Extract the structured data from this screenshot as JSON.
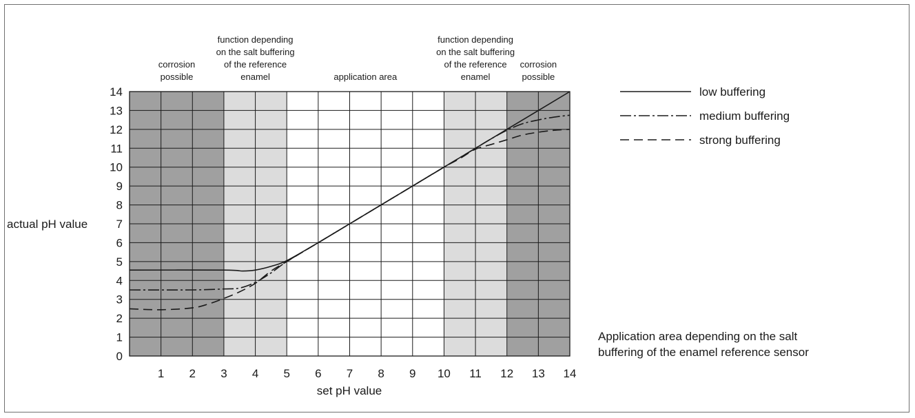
{
  "chart_data": {
    "type": "line",
    "xlabel": "set pH value",
    "ylabel": "actual pH value",
    "xlim": [
      0,
      14
    ],
    "ylim": [
      0,
      14
    ],
    "x_ticks": [
      1,
      2,
      3,
      4,
      5,
      6,
      7,
      8,
      9,
      10,
      11,
      12,
      13,
      14
    ],
    "y_ticks": [
      0,
      1,
      2,
      3,
      4,
      5,
      6,
      7,
      8,
      9,
      10,
      11,
      12,
      13,
      14
    ],
    "grid": true,
    "legend_position": "right",
    "zones": [
      {
        "from": 0,
        "to": 3,
        "shade": "dark",
        "label": [
          "corrosion",
          "possible"
        ]
      },
      {
        "from": 3,
        "to": 5,
        "shade": "light",
        "label": [
          "function depending",
          "on the salt buffering",
          "of the reference",
          "enamel"
        ]
      },
      {
        "from": 5,
        "to": 10,
        "shade": "none",
        "label": [
          "application area"
        ]
      },
      {
        "from": 10,
        "to": 12,
        "shade": "light",
        "label": [
          "function depending",
          "on the salt buffering",
          "of the reference",
          "enamel"
        ]
      },
      {
        "from": 12,
        "to": 14,
        "shade": "dark",
        "label": [
          "corrosion",
          "possible"
        ]
      }
    ],
    "series": [
      {
        "name": "low buffering",
        "style": "solid",
        "points": [
          [
            0,
            4.55
          ],
          [
            3,
            4.55
          ],
          [
            3.6,
            4.5
          ],
          [
            4,
            4.55
          ],
          [
            4.5,
            4.75
          ],
          [
            5,
            5.05
          ],
          [
            6,
            6
          ],
          [
            7,
            7
          ],
          [
            8,
            8
          ],
          [
            9,
            9
          ],
          [
            10,
            10
          ],
          [
            11,
            11
          ],
          [
            12,
            12
          ],
          [
            13,
            13
          ],
          [
            14,
            14
          ]
        ]
      },
      {
        "name": "medium buffering",
        "style": "dashdot",
        "points": [
          [
            0,
            3.5
          ],
          [
            2,
            3.5
          ],
          [
            3,
            3.55
          ],
          [
            3.5,
            3.6
          ],
          [
            4,
            3.9
          ],
          [
            4.5,
            4.4
          ],
          [
            5,
            5.0
          ],
          [
            6,
            6
          ],
          [
            7,
            7
          ],
          [
            8,
            8
          ],
          [
            9,
            9
          ],
          [
            10,
            10
          ],
          [
            10.5,
            10.5
          ],
          [
            11,
            11
          ],
          [
            11.5,
            11.5
          ],
          [
            12,
            11.95
          ],
          [
            12.5,
            12.3
          ],
          [
            13,
            12.5
          ],
          [
            13.5,
            12.65
          ],
          [
            14,
            12.75
          ]
        ]
      },
      {
        "name": "strong buffering",
        "style": "dashed",
        "points": [
          [
            0,
            2.5
          ],
          [
            1,
            2.45
          ],
          [
            2,
            2.55
          ],
          [
            2.5,
            2.75
          ],
          [
            3,
            3.05
          ],
          [
            3.5,
            3.4
          ],
          [
            4,
            3.85
          ],
          [
            4.5,
            4.5
          ],
          [
            5,
            5.0
          ],
          [
            6,
            6
          ],
          [
            7,
            7
          ],
          [
            8,
            8
          ],
          [
            9,
            9
          ],
          [
            10,
            10
          ],
          [
            10.5,
            10.45
          ],
          [
            11,
            10.95
          ],
          [
            11.5,
            11.2
          ],
          [
            12,
            11.45
          ],
          [
            12.5,
            11.7
          ],
          [
            13,
            11.85
          ],
          [
            13.5,
            11.95
          ],
          [
            14,
            12.0
          ]
        ]
      }
    ],
    "annotation": [
      "Application area depending on the salt",
      "buffering of the enamel reference sensor"
    ],
    "colors": {
      "dark_zone": "#a0a0a0",
      "light_zone": "#dcdcdc",
      "grid": "#1a1a1a",
      "line": "#1a1a1a"
    }
  }
}
